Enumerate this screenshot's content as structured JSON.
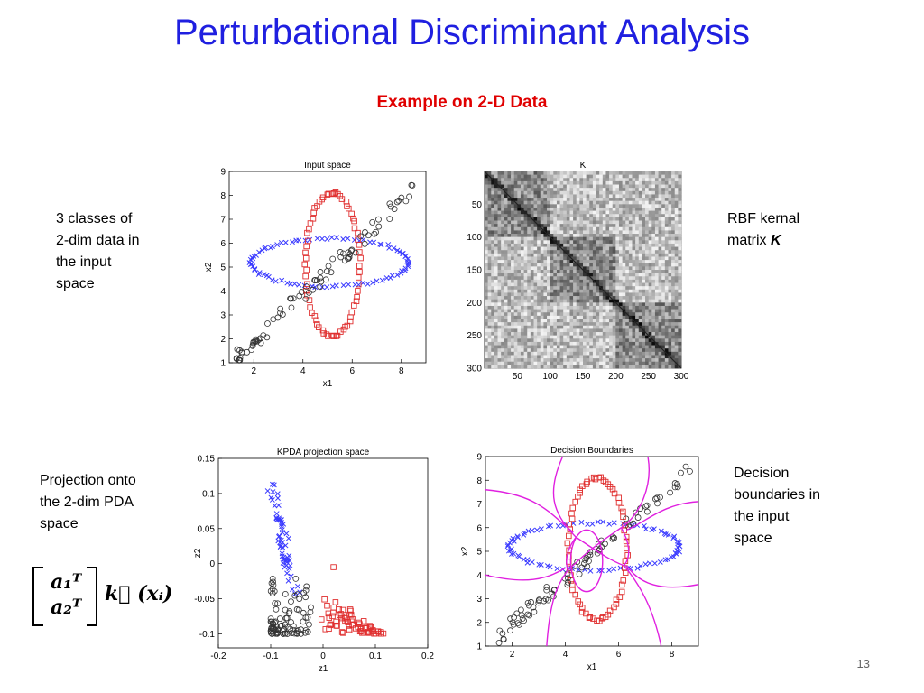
{
  "slide": {
    "title": "Perturbational Discriminant Analysis",
    "subtitle": "Example on 2-D Data",
    "page_number": "13"
  },
  "notes": {
    "input": [
      "3 classes of",
      "2-dim data in",
      "the input",
      "space"
    ],
    "kernel_prefix": "RBF kernal",
    "kernel_line2": "matrix ",
    "kernel_symbol": "K",
    "projection": [
      "Projection onto",
      "the 2-dim PDA",
      "space"
    ],
    "decision": [
      "Decision",
      "boundaries in",
      "the input",
      "space"
    ]
  },
  "formula": {
    "row1": "a₁ᵀ",
    "row2": "a₂ᵀ",
    "rhs": "k⃗ (xᵢ)"
  },
  "colors": {
    "title": "#1f1fe0",
    "subtitle": "#e00000",
    "class_circle": "#333333",
    "class_square": "#e03030",
    "class_cross": "#3a3aff",
    "boundary": "#e020e0"
  },
  "chart_data": [
    {
      "type": "scatter",
      "title": "Input space",
      "xlabel": "x1",
      "ylabel": "x2",
      "xlim": [
        1,
        9
      ],
      "ylim": [
        1,
        9
      ],
      "xticks": [
        2,
        4,
        6,
        8
      ],
      "yticks": [
        1,
        2,
        3,
        4,
        5,
        6,
        7,
        8,
        9
      ],
      "series": [
        {
          "marker": "circle",
          "shape": "diagonal",
          "x_range": [
            1.3,
            8.7
          ]
        },
        {
          "marker": "square",
          "shape": "vertical-ellipse",
          "center": [
            5.2,
            5.1
          ],
          "radii": [
            1.1,
            3.0
          ]
        },
        {
          "marker": "cross",
          "shape": "horizontal-ellipse",
          "center": [
            5.1,
            5.2
          ],
          "radii": [
            3.2,
            1.0
          ]
        }
      ]
    },
    {
      "type": "heatmap",
      "title": "K",
      "xticks": [
        50,
        100,
        150,
        200,
        250,
        300
      ],
      "yticks": [
        50,
        100,
        150,
        200,
        250,
        300
      ],
      "size": 300
    },
    {
      "type": "scatter",
      "title": "KPDA projection space",
      "xlabel": "z1",
      "ylabel": "z2",
      "xlim": [
        -0.2,
        0.2
      ],
      "ylim": [
        -0.12,
        0.15
      ],
      "xticks": [
        -0.2,
        -0.1,
        0,
        0.1,
        0.2
      ],
      "yticks": [
        0.15,
        0.1,
        0.05,
        0,
        -0.05,
        -0.1
      ],
      "xtick_labels": [
        "-0.2",
        "-0.1",
        "0",
        "0.1",
        "0.2"
      ],
      "ytick_labels": [
        "0.15",
        "0.1",
        "0.05",
        "0",
        "-0.05",
        "-0.1"
      ]
    },
    {
      "type": "scatter",
      "title": "Decision Boundaries",
      "xlabel": "x1",
      "ylabel": "x2",
      "xlim": [
        1,
        9
      ],
      "ylim": [
        1,
        9
      ],
      "xticks": [
        2,
        4,
        6,
        8
      ],
      "yticks": [
        1,
        2,
        3,
        4,
        5,
        6,
        7,
        8,
        9
      ]
    }
  ]
}
